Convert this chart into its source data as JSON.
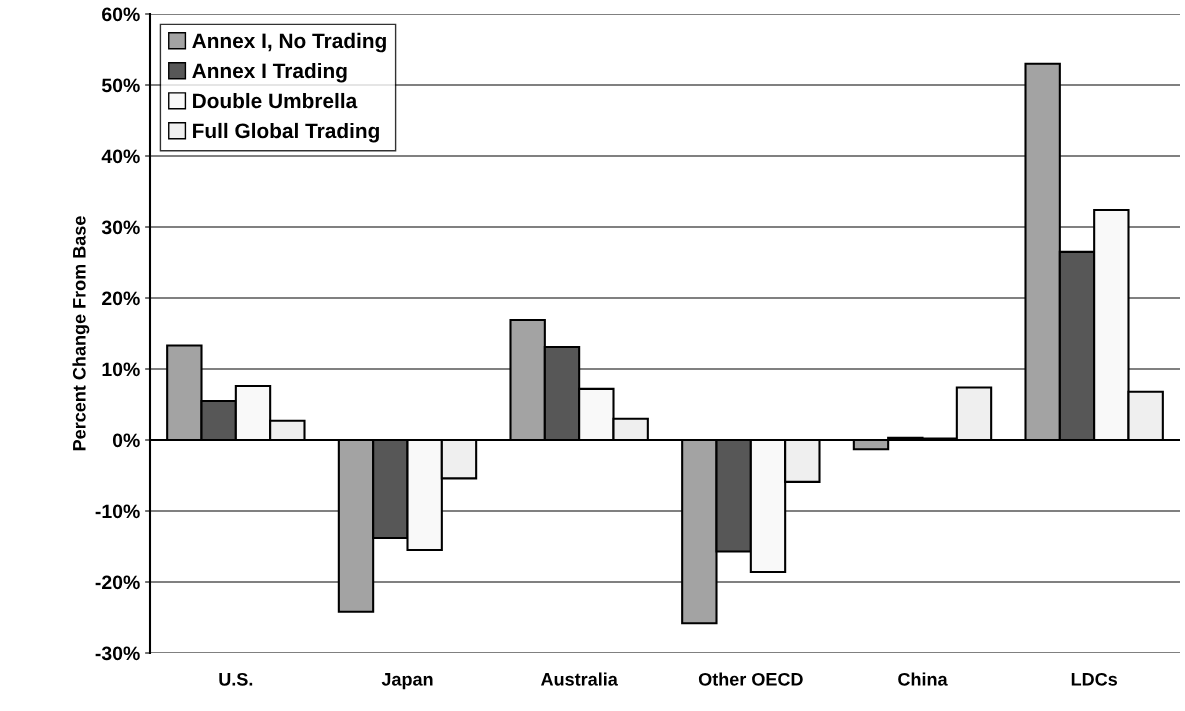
{
  "chart_data": {
    "type": "bar",
    "ylabel": "Percent Change From Base",
    "categories": [
      "U.S.",
      "Japan",
      "Australia",
      "Other OECD",
      "China",
      "LDCs"
    ],
    "series": [
      {
        "name": "Annex I, No Trading",
        "color": "#a3a3a3",
        "values": [
          13.3,
          -24.2,
          16.9,
          -25.8,
          -1.3,
          53.0
        ]
      },
      {
        "name": "Annex I Trading",
        "color": "#575757",
        "values": [
          5.5,
          -13.8,
          13.1,
          -15.7,
          0.3,
          26.5
        ]
      },
      {
        "name": "Double Umbrella",
        "color": "#f9f9f9",
        "values": [
          7.6,
          -15.5,
          7.2,
          -18.6,
          0.2,
          32.4
        ]
      },
      {
        "name": "Full Global Trading",
        "color": "#efefef",
        "values": [
          2.7,
          -5.4,
          3.0,
          -5.9,
          7.4,
          6.8
        ]
      }
    ],
    "ylim": [
      -30,
      60
    ],
    "yticks": [
      {
        "value": -30,
        "label": "-30%"
      },
      {
        "value": -20,
        "label": "-20%"
      },
      {
        "value": -10,
        "label": "-10%"
      },
      {
        "value": 0,
        "label": "0%"
      },
      {
        "value": 10,
        "label": "10%"
      },
      {
        "value": 20,
        "label": "20%"
      },
      {
        "value": 30,
        "label": "30%"
      },
      {
        "value": 40,
        "label": "40%"
      },
      {
        "value": 50,
        "label": "50%"
      },
      {
        "value": 60,
        "label": "60%"
      }
    ],
    "grid": "y",
    "legend": "top left"
  }
}
